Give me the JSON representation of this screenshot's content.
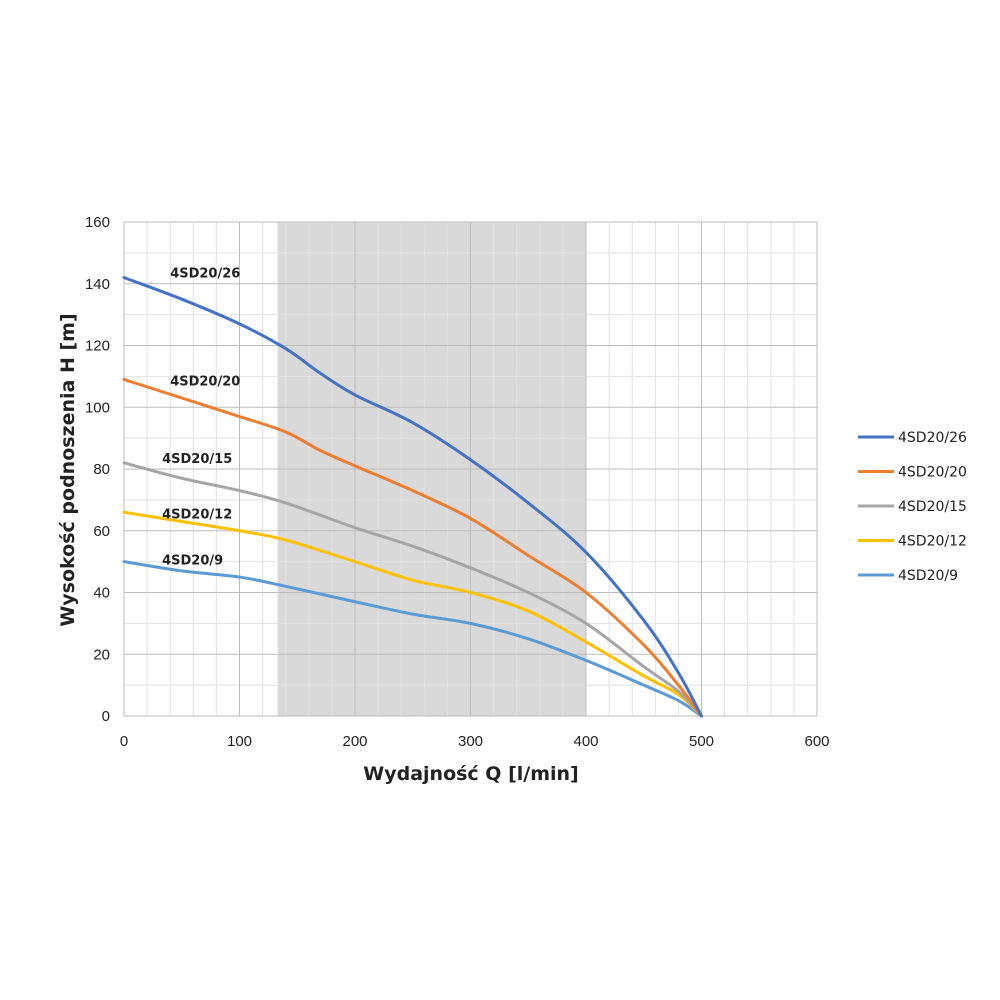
{
  "chart_data": {
    "type": "line",
    "xlabel": "Wydajność Q [l/min]",
    "ylabel": "Wysokość podnoszenia H [m]",
    "xlim": [
      0,
      600
    ],
    "ylim": [
      0,
      160
    ],
    "x_ticks": [
      "0",
      "100",
      "200",
      "300",
      "400",
      "500",
      "600"
    ],
    "y_ticks": [
      "0",
      "20",
      "40",
      "60",
      "80",
      "100",
      "120",
      "140",
      "160"
    ],
    "x_tick_values": [
      0,
      100,
      200,
      300,
      400,
      500,
      600
    ],
    "y_tick_values": [
      0,
      20,
      40,
      60,
      80,
      100,
      120,
      140,
      160
    ],
    "grid": true,
    "shaded_range_x": [
      133,
      400
    ],
    "legend": "right",
    "series": [
      {
        "name": "4SD20/26",
        "color": "#4472C4",
        "label_at": [
          40,
          142
        ],
        "x": [
          0,
          50,
          100,
          140,
          170,
          200,
          250,
          300,
          350,
          400,
          450,
          480,
          500
        ],
        "y": [
          142,
          135,
          127,
          119,
          111,
          104,
          95,
          83,
          69,
          53,
          31,
          14,
          0
        ]
      },
      {
        "name": "4SD20/20",
        "color": "#ED7D31",
        "label_at": [
          40,
          107
        ],
        "x": [
          0,
          50,
          100,
          140,
          170,
          200,
          250,
          300,
          350,
          400,
          450,
          480,
          500
        ],
        "y": [
          109,
          103,
          97,
          92,
          86,
          81,
          73,
          64,
          52,
          40,
          23,
          10,
          0
        ]
      },
      {
        "name": "4SD20/15",
        "color": "#A5A5A5",
        "label_at": [
          33,
          82
        ],
        "x": [
          0,
          50,
          100,
          140,
          200,
          250,
          300,
          350,
          400,
          450,
          480,
          500
        ],
        "y": [
          82,
          77,
          73,
          69,
          61,
          55,
          48,
          40,
          30,
          16,
          8,
          0
        ]
      },
      {
        "name": "4SD20/12",
        "color": "#FFC000",
        "label_at": [
          33,
          64
        ],
        "x": [
          0,
          50,
          100,
          140,
          200,
          250,
          300,
          350,
          400,
          450,
          480,
          500
        ],
        "y": [
          66,
          63,
          60,
          57,
          50,
          44,
          40,
          34,
          24,
          13,
          7,
          0
        ]
      },
      {
        "name": "4SD20/9",
        "color": "#5B9BD5",
        "label_at": [
          33,
          49
        ],
        "x": [
          0,
          50,
          100,
          140,
          200,
          250,
          300,
          350,
          400,
          450,
          480,
          500
        ],
        "y": [
          50,
          47,
          45,
          42,
          37,
          33,
          30,
          25,
          18,
          10,
          5,
          0
        ]
      }
    ]
  }
}
